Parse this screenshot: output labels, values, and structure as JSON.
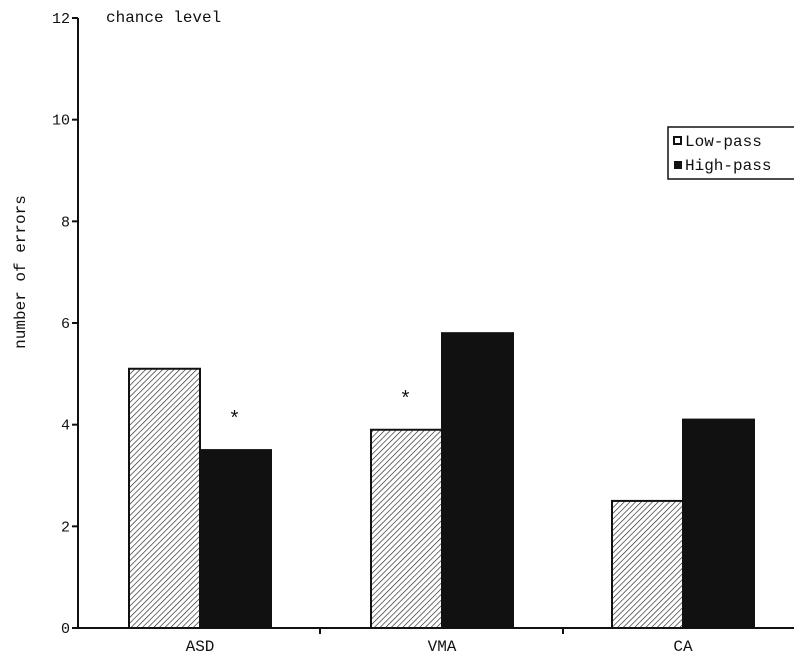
{
  "chart_data": {
    "type": "bar",
    "categories": [
      "ASD",
      "VMA",
      "CA"
    ],
    "series": [
      {
        "name": "Low-pass",
        "values": [
          5.1,
          3.9,
          2.5
        ],
        "color": "#ffffff",
        "pattern": "diagonal-hatch"
      },
      {
        "name": "High-pass",
        "values": [
          3.5,
          5.8,
          4.1
        ],
        "color": "#111111",
        "pattern": "solid"
      }
    ],
    "ylabel": "number of errors",
    "xlabel": "",
    "ylim": [
      0,
      12
    ],
    "yticks": [
      0,
      2,
      4,
      6,
      8,
      10,
      12
    ],
    "ytick_labels": [
      "0",
      "2",
      "4",
      "6",
      "8",
      "10",
      "12"
    ],
    "annotations": [
      {
        "text": "chance level"
      },
      {
        "text": "*",
        "category": "ASD",
        "series": "High-pass"
      },
      {
        "text": "*",
        "category": "VMA",
        "series": "Low-pass"
      }
    ],
    "legend_position": "top-right",
    "grid": false
  }
}
